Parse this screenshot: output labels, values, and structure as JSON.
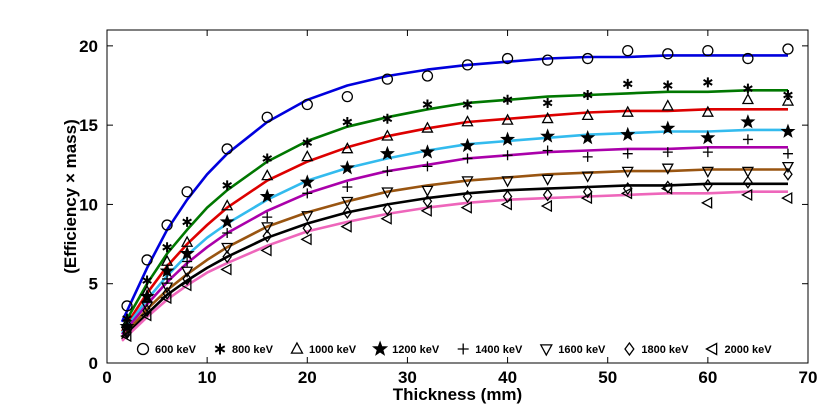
{
  "chart_data": {
    "type": "scatter",
    "xlabel": "Thickness (mm)",
    "ylabel": "(Efficiency × mass)",
    "xlim": [
      0,
      70
    ],
    "ylim": [
      0,
      21
    ],
    "xticks": [
      0,
      10,
      20,
      30,
      40,
      50,
      60,
      70
    ],
    "yticks": [
      0,
      5,
      10,
      15,
      20
    ],
    "grid": false,
    "legend_position": "bottom",
    "series": [
      {
        "name": "600 keV",
        "marker": "circle",
        "color": "#0000dd",
        "points": [
          [
            2,
            3.6
          ],
          [
            4,
            6.5
          ],
          [
            6,
            8.7
          ],
          [
            8,
            10.8
          ],
          [
            12,
            13.5
          ],
          [
            16,
            15.5
          ],
          [
            20,
            16.3
          ],
          [
            24,
            16.8
          ],
          [
            28,
            17.9
          ],
          [
            32,
            18.1
          ],
          [
            36,
            18.8
          ],
          [
            40,
            19.2
          ],
          [
            44,
            19.1
          ],
          [
            48,
            19.2
          ],
          [
            52,
            19.7
          ],
          [
            56,
            19.5
          ],
          [
            60,
            19.7
          ],
          [
            64,
            19.2
          ],
          [
            68,
            19.8
          ]
        ],
        "fit": [
          [
            1.5,
            2.6
          ],
          [
            4,
            6.0
          ],
          [
            6,
            8.4
          ],
          [
            8,
            10.3
          ],
          [
            10,
            11.9
          ],
          [
            12,
            13.2
          ],
          [
            16,
            15.2
          ],
          [
            20,
            16.6
          ],
          [
            24,
            17.5
          ],
          [
            28,
            18.1
          ],
          [
            32,
            18.5
          ],
          [
            36,
            18.8
          ],
          [
            40,
            19.0
          ],
          [
            44,
            19.2
          ],
          [
            48,
            19.3
          ],
          [
            52,
            19.3
          ],
          [
            56,
            19.4
          ],
          [
            60,
            19.4
          ],
          [
            64,
            19.4
          ],
          [
            68,
            19.4
          ]
        ]
      },
      {
        "name": "800 keV",
        "marker": "asterisk",
        "color": "#007700",
        "points": [
          [
            2,
            2.8
          ],
          [
            4,
            5.2
          ],
          [
            6,
            7.3
          ],
          [
            8,
            8.9
          ],
          [
            12,
            11.2
          ],
          [
            16,
            12.9
          ],
          [
            20,
            13.9
          ],
          [
            24,
            15.2
          ],
          [
            28,
            15.4
          ],
          [
            32,
            16.3
          ],
          [
            36,
            16.3
          ],
          [
            40,
            16.6
          ],
          [
            44,
            16.4
          ],
          [
            48,
            16.9
          ],
          [
            52,
            17.6
          ],
          [
            56,
            17.5
          ],
          [
            60,
            17.7
          ],
          [
            64,
            17.3
          ],
          [
            68,
            16.9
          ]
        ],
        "fit": [
          [
            1.5,
            2.2
          ],
          [
            4,
            5.0
          ],
          [
            6,
            6.9
          ],
          [
            8,
            8.4
          ],
          [
            10,
            9.8
          ],
          [
            12,
            10.9
          ],
          [
            16,
            12.7
          ],
          [
            20,
            14.0
          ],
          [
            24,
            14.9
          ],
          [
            28,
            15.5
          ],
          [
            32,
            16.0
          ],
          [
            36,
            16.4
          ],
          [
            40,
            16.6
          ],
          [
            44,
            16.8
          ],
          [
            48,
            16.9
          ],
          [
            52,
            17.0
          ],
          [
            56,
            17.1
          ],
          [
            60,
            17.1
          ],
          [
            64,
            17.2
          ],
          [
            68,
            17.2
          ]
        ]
      },
      {
        "name": "1000 keV",
        "marker": "triangle-up",
        "color": "#dd0000",
        "points": [
          [
            2,
            2.5
          ],
          [
            4,
            4.5
          ],
          [
            6,
            6.4
          ],
          [
            8,
            7.6
          ],
          [
            12,
            9.9
          ],
          [
            16,
            11.8
          ],
          [
            20,
            13.0
          ],
          [
            24,
            13.5
          ],
          [
            28,
            14.3
          ],
          [
            32,
            14.8
          ],
          [
            36,
            15.2
          ],
          [
            40,
            15.3
          ],
          [
            44,
            15.4
          ],
          [
            48,
            15.6
          ],
          [
            52,
            15.8
          ],
          [
            56,
            16.2
          ],
          [
            60,
            15.8
          ],
          [
            64,
            16.6
          ],
          [
            68,
            16.5
          ]
        ],
        "fit": [
          [
            1.5,
            2.0
          ],
          [
            4,
            4.4
          ],
          [
            6,
            6.1
          ],
          [
            8,
            7.5
          ],
          [
            10,
            8.7
          ],
          [
            12,
            9.8
          ],
          [
            16,
            11.5
          ],
          [
            20,
            12.7
          ],
          [
            24,
            13.6
          ],
          [
            28,
            14.3
          ],
          [
            32,
            14.8
          ],
          [
            36,
            15.2
          ],
          [
            40,
            15.4
          ],
          [
            44,
            15.6
          ],
          [
            48,
            15.8
          ],
          [
            52,
            15.9
          ],
          [
            56,
            15.9
          ],
          [
            60,
            16.0
          ],
          [
            64,
            16.0
          ],
          [
            68,
            16.0
          ]
        ]
      },
      {
        "name": "1200 keV",
        "marker": "star",
        "color": "#33bbee",
        "points": [
          [
            2,
            2.3
          ],
          [
            4,
            4.2
          ],
          [
            6,
            5.8
          ],
          [
            8,
            6.9
          ],
          [
            12,
            8.9
          ],
          [
            16,
            10.5
          ],
          [
            20,
            11.4
          ],
          [
            24,
            12.3
          ],
          [
            28,
            13.2
          ],
          [
            32,
            13.3
          ],
          [
            36,
            13.7
          ],
          [
            40,
            14.1
          ],
          [
            44,
            14.3
          ],
          [
            48,
            14.2
          ],
          [
            52,
            14.4
          ],
          [
            56,
            14.8
          ],
          [
            60,
            14.2
          ],
          [
            64,
            15.2
          ],
          [
            68,
            14.6
          ]
        ],
        "fit": [
          [
            1.5,
            1.9
          ],
          [
            4,
            4.0
          ],
          [
            6,
            5.5
          ],
          [
            8,
            6.8
          ],
          [
            10,
            7.9
          ],
          [
            12,
            8.8
          ],
          [
            16,
            10.3
          ],
          [
            20,
            11.5
          ],
          [
            24,
            12.3
          ],
          [
            28,
            12.9
          ],
          [
            32,
            13.4
          ],
          [
            36,
            13.8
          ],
          [
            40,
            14.0
          ],
          [
            44,
            14.2
          ],
          [
            48,
            14.4
          ],
          [
            52,
            14.5
          ],
          [
            56,
            14.6
          ],
          [
            60,
            14.6
          ],
          [
            64,
            14.7
          ],
          [
            68,
            14.7
          ]
        ]
      },
      {
        "name": "1400 keV",
        "marker": "plus",
        "color": "#aa00aa",
        "points": [
          [
            2,
            2.1
          ],
          [
            4,
            3.9
          ],
          [
            6,
            5.3
          ],
          [
            8,
            6.4
          ],
          [
            12,
            8.2
          ],
          [
            16,
            9.2
          ],
          [
            20,
            10.7
          ],
          [
            24,
            11.1
          ],
          [
            28,
            12.1
          ],
          [
            32,
            12.4
          ],
          [
            36,
            12.9
          ],
          [
            40,
            13.1
          ],
          [
            44,
            13.4
          ],
          [
            48,
            13.0
          ],
          [
            52,
            13.2
          ],
          [
            56,
            13.3
          ],
          [
            60,
            13.3
          ],
          [
            64,
            14.1
          ],
          [
            68,
            13.2
          ]
        ],
        "fit": [
          [
            1.5,
            1.8
          ],
          [
            4,
            3.7
          ],
          [
            6,
            5.1
          ],
          [
            8,
            6.3
          ],
          [
            10,
            7.3
          ],
          [
            12,
            8.2
          ],
          [
            16,
            9.6
          ],
          [
            20,
            10.7
          ],
          [
            24,
            11.5
          ],
          [
            28,
            12.1
          ],
          [
            32,
            12.5
          ],
          [
            36,
            12.9
          ],
          [
            40,
            13.1
          ],
          [
            44,
            13.3
          ],
          [
            48,
            13.4
          ],
          [
            52,
            13.5
          ],
          [
            56,
            13.5
          ],
          [
            60,
            13.6
          ],
          [
            64,
            13.6
          ],
          [
            68,
            13.6
          ]
        ]
      },
      {
        "name": "1600 keV",
        "marker": "triangle-down",
        "color": "#995511",
        "points": [
          [
            2,
            2.0
          ],
          [
            4,
            3.6
          ],
          [
            6,
            4.8
          ],
          [
            8,
            5.8
          ],
          [
            12,
            7.3
          ],
          [
            16,
            8.6
          ],
          [
            20,
            9.3
          ],
          [
            24,
            10.2
          ],
          [
            28,
            10.8
          ],
          [
            32,
            10.9
          ],
          [
            36,
            11.5
          ],
          [
            40,
            11.5
          ],
          [
            44,
            11.6
          ],
          [
            48,
            11.8
          ],
          [
            52,
            12.1
          ],
          [
            56,
            12.3
          ],
          [
            60,
            12.1
          ],
          [
            64,
            12.1
          ],
          [
            68,
            12.4
          ]
        ],
        "fit": [
          [
            1.5,
            1.6
          ],
          [
            4,
            3.4
          ],
          [
            6,
            4.6
          ],
          [
            8,
            5.6
          ],
          [
            10,
            6.5
          ],
          [
            12,
            7.3
          ],
          [
            16,
            8.6
          ],
          [
            20,
            9.5
          ],
          [
            24,
            10.2
          ],
          [
            28,
            10.8
          ],
          [
            32,
            11.2
          ],
          [
            36,
            11.5
          ],
          [
            40,
            11.7
          ],
          [
            44,
            11.9
          ],
          [
            48,
            12.0
          ],
          [
            52,
            12.1
          ],
          [
            56,
            12.1
          ],
          [
            60,
            12.2
          ],
          [
            64,
            12.2
          ],
          [
            68,
            12.2
          ]
        ]
      },
      {
        "name": "1800 keV",
        "marker": "diamond",
        "color": "#000000",
        "points": [
          [
            2,
            1.9
          ],
          [
            4,
            3.3
          ],
          [
            6,
            4.4
          ],
          [
            8,
            5.3
          ],
          [
            12,
            6.7
          ],
          [
            16,
            8.0
          ],
          [
            20,
            8.5
          ],
          [
            24,
            9.5
          ],
          [
            28,
            9.7
          ],
          [
            32,
            10.2
          ],
          [
            36,
            10.5
          ],
          [
            40,
            10.5
          ],
          [
            44,
            10.6
          ],
          [
            48,
            10.8
          ],
          [
            52,
            11.0
          ],
          [
            56,
            11.1
          ],
          [
            60,
            11.2
          ],
          [
            64,
            11.4
          ],
          [
            68,
            11.9
          ]
        ],
        "fit": [
          [
            1.5,
            1.5
          ],
          [
            4,
            3.1
          ],
          [
            6,
            4.3
          ],
          [
            8,
            5.2
          ],
          [
            10,
            6.0
          ],
          [
            12,
            6.7
          ],
          [
            16,
            7.9
          ],
          [
            20,
            8.8
          ],
          [
            24,
            9.5
          ],
          [
            28,
            10.0
          ],
          [
            32,
            10.4
          ],
          [
            36,
            10.7
          ],
          [
            40,
            10.9
          ],
          [
            44,
            11.0
          ],
          [
            48,
            11.1
          ],
          [
            52,
            11.2
          ],
          [
            56,
            11.2
          ],
          [
            60,
            11.3
          ],
          [
            64,
            11.3
          ],
          [
            68,
            11.3
          ]
        ]
      },
      {
        "name": "2000 keV",
        "marker": "triangle-left",
        "color": "#ee66bb",
        "points": [
          [
            2,
            1.7
          ],
          [
            4,
            3.0
          ],
          [
            6,
            4.1
          ],
          [
            8,
            4.9
          ],
          [
            12,
            5.9
          ],
          [
            16,
            7.1
          ],
          [
            20,
            7.8
          ],
          [
            24,
            8.6
          ],
          [
            28,
            9.1
          ],
          [
            32,
            9.6
          ],
          [
            36,
            9.8
          ],
          [
            40,
            10.0
          ],
          [
            44,
            9.9
          ],
          [
            48,
            10.4
          ],
          [
            52,
            10.7
          ],
          [
            56,
            11.0
          ],
          [
            60,
            10.1
          ],
          [
            64,
            10.6
          ],
          [
            68,
            10.4
          ]
        ],
        "fit": [
          [
            1.5,
            1.4
          ],
          [
            4,
            2.9
          ],
          [
            6,
            4.0
          ],
          [
            8,
            4.9
          ],
          [
            10,
            5.7
          ],
          [
            12,
            6.3
          ],
          [
            16,
            7.4
          ],
          [
            20,
            8.3
          ],
          [
            24,
            8.9
          ],
          [
            28,
            9.4
          ],
          [
            32,
            9.8
          ],
          [
            36,
            10.1
          ],
          [
            40,
            10.3
          ],
          [
            44,
            10.4
          ],
          [
            48,
            10.5
          ],
          [
            52,
            10.6
          ],
          [
            56,
            10.7
          ],
          [
            60,
            10.7
          ],
          [
            64,
            10.8
          ],
          [
            68,
            10.8
          ]
        ]
      }
    ]
  }
}
